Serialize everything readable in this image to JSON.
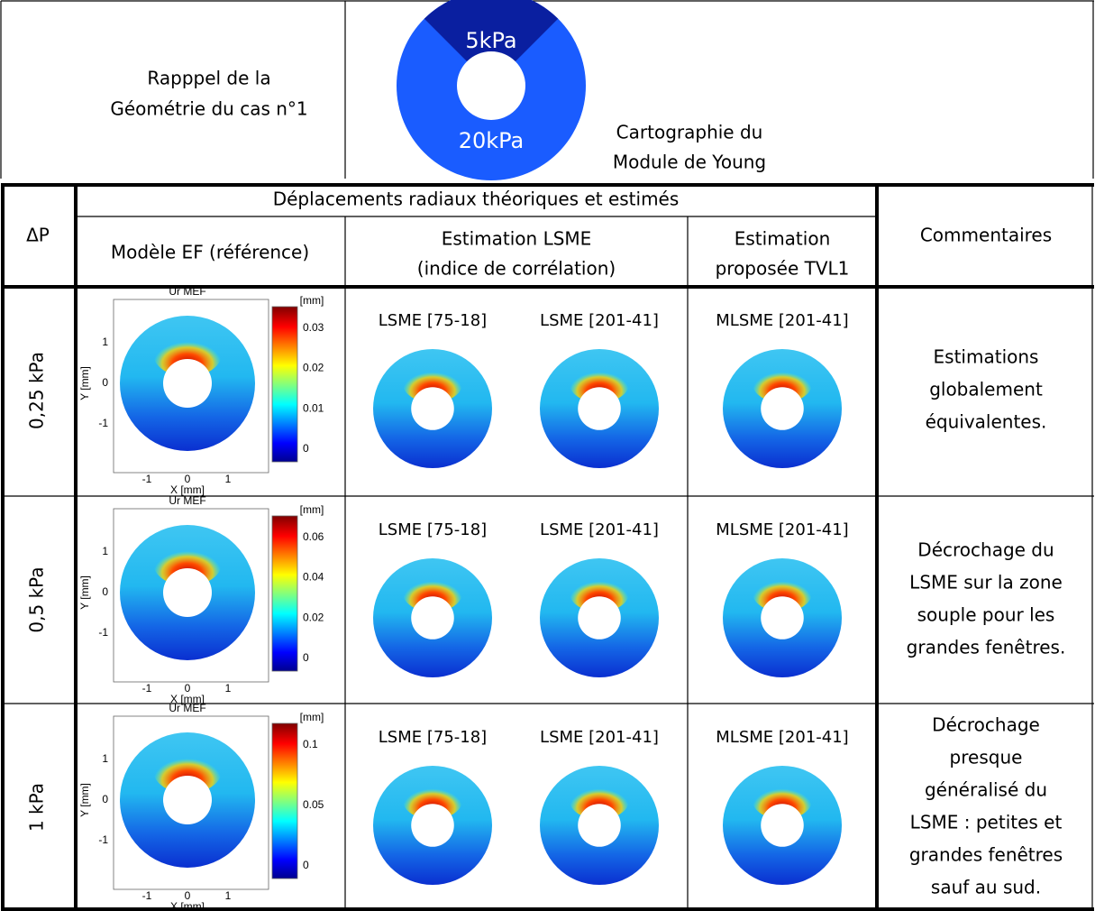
{
  "header": {
    "left_lines": [
      "Rapppel de la",
      "Géométrie du cas n°1"
    ],
    "diagram": {
      "inner_label": "5kPa",
      "outer_label": "20kPa",
      "caption_lines": [
        "Cartographie du",
        "Module de Young"
      ]
    }
  },
  "table": {
    "dp_header": "ΔP",
    "group_header": "Déplacements radiaux théoriques et estimés",
    "columns": [
      [
        "Modèle EF (référence)"
      ],
      [
        "Estimation LSME",
        "(indice de corrélation)"
      ],
      [
        "Estimation",
        "proposée TVL1"
      ]
    ],
    "comments_header": "Commentaires",
    "rows": [
      {
        "dp": "0,25 kPa",
        "plot": {
          "title": "Ur MEF",
          "unit": "[mm]",
          "colorbar_ticks": [
            0,
            0.01,
            0.02,
            0.03
          ],
          "y_ticks": [
            -1,
            0,
            1
          ],
          "x_ticks": [
            -1,
            0,
            1
          ],
          "x_label": "X [mm]",
          "y_label": "Y [mm]"
        },
        "lsme": [
          "LSME [75-18]",
          "LSME [201-41]"
        ],
        "tvl1": "MLSME [201-41]",
        "comment": [
          "Estimations",
          "globalement",
          "équivalentes."
        ]
      },
      {
        "dp": "0,5 kPa",
        "plot": {
          "title": "Ur MEF",
          "unit": "[mm]",
          "colorbar_ticks": [
            0,
            0.02,
            0.04,
            0.06
          ],
          "y_ticks": [
            -1,
            0,
            1
          ],
          "x_ticks": [
            -1,
            0,
            1
          ],
          "x_label": "X [mm]",
          "y_label": "Y [mm]"
        },
        "lsme": [
          "LSME [75-18]",
          "LSME [201-41]"
        ],
        "tvl1": "MLSME [201-41]",
        "comment": [
          "Décrochage du",
          "LSME sur la zone",
          "souple pour les",
          "grandes fenêtres."
        ]
      },
      {
        "dp": "1 kPa",
        "plot": {
          "title": "Ur MEF",
          "unit": "[mm]",
          "colorbar_ticks": [
            0,
            0.05,
            0.1
          ],
          "y_ticks": [
            -1,
            0,
            1
          ],
          "x_ticks": [
            -1,
            0,
            1
          ],
          "x_label": "X [mm]",
          "y_label": "Y [mm]"
        },
        "lsme": [
          "LSME [75-18]",
          "LSME [201-41]"
        ],
        "tvl1": "MLSME [201-41]",
        "comment": [
          "Décrochage",
          "presque",
          "généralisé du",
          "LSME : petites et",
          "grandes fenêtres",
          "sauf au sud."
        ]
      }
    ]
  }
}
